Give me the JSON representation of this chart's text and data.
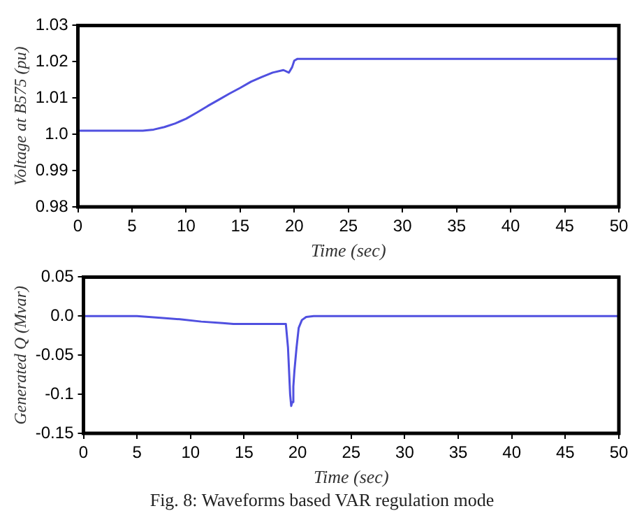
{
  "chart_data": [
    {
      "type": "line",
      "xlabel": "Time (sec)",
      "ylabel": "Voltage at B575 (pu)",
      "xlim": [
        0,
        50
      ],
      "ylim": [
        0.98,
        1.03
      ],
      "xticks": [
        0,
        5,
        10,
        15,
        20,
        25,
        30,
        35,
        40,
        45,
        50
      ],
      "yticks": [
        0.98,
        0.99,
        {
          "value": 1.0,
          "label": "1.0"
        },
        1.01,
        1.02,
        1.03
      ],
      "grid": false,
      "legend": false,
      "series": [
        {
          "color": "#5050e0",
          "x": [
            0,
            5,
            6,
            7,
            8,
            9,
            10,
            11,
            12,
            13,
            14,
            15,
            16,
            17,
            18,
            19,
            19.5,
            19.8,
            20,
            20.3,
            25,
            30,
            40,
            50
          ],
          "values": [
            1.001,
            1.001,
            1.001,
            1.0013,
            1.002,
            1.003,
            1.0043,
            1.006,
            1.0078,
            1.0095,
            1.0112,
            1.0128,
            1.0145,
            1.0158,
            1.017,
            1.0177,
            1.017,
            1.0185,
            1.0203,
            1.0208,
            1.0208,
            1.0208,
            1.0208,
            1.0208
          ]
        }
      ]
    },
    {
      "type": "line",
      "xlabel": "Time (sec)",
      "ylabel": "Generated Q (Mvar)",
      "xlim": [
        0,
        50
      ],
      "ylim": [
        -0.15,
        0.05
      ],
      "xticks": [
        0,
        5,
        10,
        15,
        20,
        25,
        30,
        35,
        40,
        45,
        50
      ],
      "yticks": [
        -0.15,
        -0.1,
        -0.05,
        {
          "value": 0,
          "label": "0.0"
        },
        0.05
      ],
      "grid": false,
      "legend": false,
      "annotations": [
        "Fig. 8: Waveforms based VAR regulation mode"
      ],
      "series": [
        {
          "color": "#5050e0",
          "x": [
            0,
            5,
            7,
            9,
            11,
            13,
            14,
            17,
            18.9,
            19.1,
            19.3,
            19.4,
            19.5,
            19.6,
            19.7,
            19.9,
            20.1,
            20.4,
            20.8,
            21.5,
            30,
            40,
            50
          ],
          "values": [
            0,
            0,
            -0.002,
            -0.004,
            -0.007,
            -0.009,
            -0.01,
            -0.01,
            -0.01,
            -0.04,
            -0.1,
            -0.115,
            -0.11,
            -0.09,
            -0.07,
            -0.04,
            -0.015,
            -0.005,
            -0.001,
            0,
            0,
            0,
            0
          ]
        }
      ]
    }
  ]
}
